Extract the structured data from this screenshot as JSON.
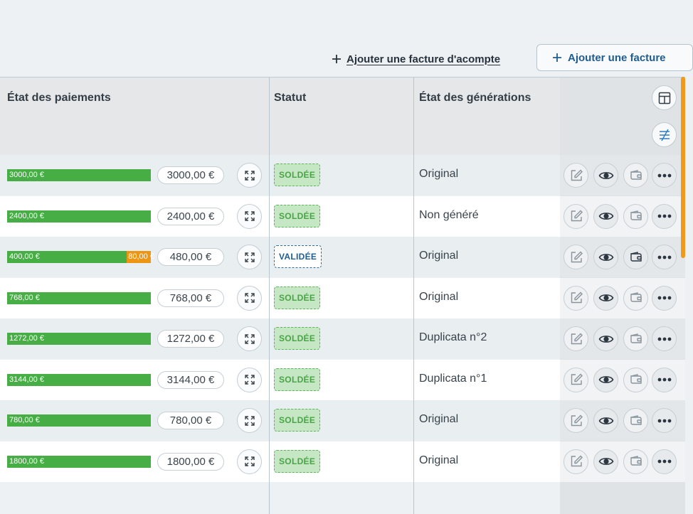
{
  "toolbar": {
    "add_deposit_label": "Ajouter une facture d'acompte",
    "add_invoice_label": "Ajouter une facture"
  },
  "table": {
    "headers": {
      "payments": "État des paiements",
      "status": "Statut",
      "generations": "État des générations"
    },
    "rows": [
      {
        "paid": "3000,00 €",
        "paid_fraction": 1.0,
        "pending": "",
        "amount": "3000,00 €",
        "status": "SOLDÉE",
        "status_kind": "soldee",
        "generation": "Original",
        "wallet_active": false
      },
      {
        "paid": "2400,00 €",
        "paid_fraction": 1.0,
        "pending": "",
        "amount": "2400,00 €",
        "status": "SOLDÉE",
        "status_kind": "soldee",
        "generation": "Non généré",
        "wallet_active": false
      },
      {
        "paid": "400,00 €",
        "paid_fraction": 0.833,
        "pending": "80,00 €",
        "amount": "480,00 €",
        "status": "VALIDÉE",
        "status_kind": "validee",
        "generation": "Original",
        "wallet_active": true
      },
      {
        "paid": "768,00 €",
        "paid_fraction": 1.0,
        "pending": "",
        "amount": "768,00 €",
        "status": "SOLDÉE",
        "status_kind": "soldee",
        "generation": "Original",
        "wallet_active": false
      },
      {
        "paid": "1272,00 €",
        "paid_fraction": 1.0,
        "pending": "",
        "amount": "1272,00 €",
        "status": "SOLDÉE",
        "status_kind": "soldee",
        "generation": "Duplicata n°2",
        "wallet_active": false
      },
      {
        "paid": "3144,00 €",
        "paid_fraction": 1.0,
        "pending": "",
        "amount": "3144,00 €",
        "status": "SOLDÉE",
        "status_kind": "soldee",
        "generation": "Duplicata n°1",
        "wallet_active": false
      },
      {
        "paid": "780,00 €",
        "paid_fraction": 1.0,
        "pending": "",
        "amount": "780,00 €",
        "status": "SOLDÉE",
        "status_kind": "soldee",
        "generation": "Original",
        "wallet_active": false
      },
      {
        "paid": "1800,00 €",
        "paid_fraction": 1.0,
        "pending": "",
        "amount": "1800,00 €",
        "status": "SOLDÉE",
        "status_kind": "soldee",
        "generation": "Original",
        "wallet_active": false
      }
    ]
  },
  "icons": {
    "row_actions": [
      "edit-icon",
      "eye-icon",
      "wallet-icon",
      "more-icon"
    ],
    "header_actions": [
      "layout-columns-icon",
      "filter-icon"
    ],
    "row_expand": "expand-icon"
  },
  "colors": {
    "paid": "#46ae45",
    "pending": "#ed9613",
    "accent": "#1f5d90",
    "scrollbar": "#ef9a1b"
  }
}
